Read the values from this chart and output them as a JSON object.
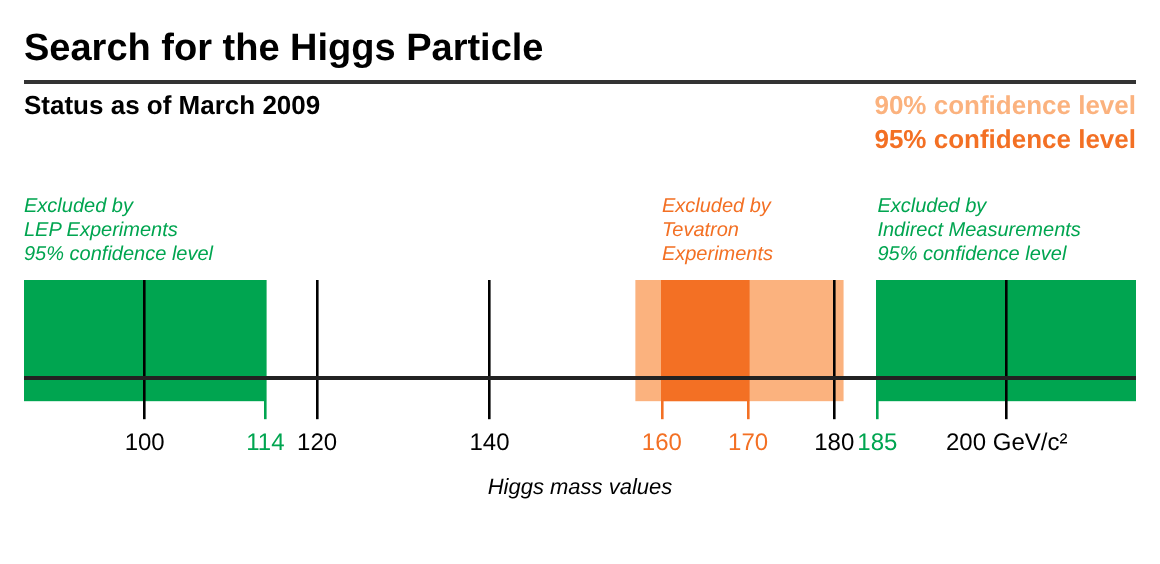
{
  "chart_data": {
    "type": "bar",
    "orientation": "horizontal",
    "title": "Search for the Higgs Particle",
    "subtitle": "Status as of March 2009",
    "xlabel": "Higgs mass values",
    "categories": [
      null
    ],
    "legend": "top right",
    "grid": "x",
    "xlim": [
      86,
      215
    ],
    "xticks": [
      100,
      114,
      120,
      140,
      160,
      170,
      180,
      185,
      {
        "value": 200,
        "label": "200 GeV/c²"
      }
    ],
    "series": [
      {
        "name": "90% confidence level",
        "color": "#fbb27e",
        "values": [
          24
        ],
        "base": [
          157
        ]
      },
      {
        "name": "95% confidence level",
        "color": "#f37024",
        "values": [
          10
        ],
        "base": [
          160
        ]
      },
      {
        "color": "#00a550",
        "values": [
          28
        ],
        "base": [
          86
        ]
      },
      {
        "color": "#00a550",
        "values": [
          30
        ],
        "base": [
          185
        ]
      }
    ],
    "annotations": [
      "Excluded by\nLEP Experiments\n95% confidence level",
      "Excluded by\nTevatron\nExperiments",
      "Excluded by\nIndirect Measurements\n95% confidence level"
    ]
  }
}
